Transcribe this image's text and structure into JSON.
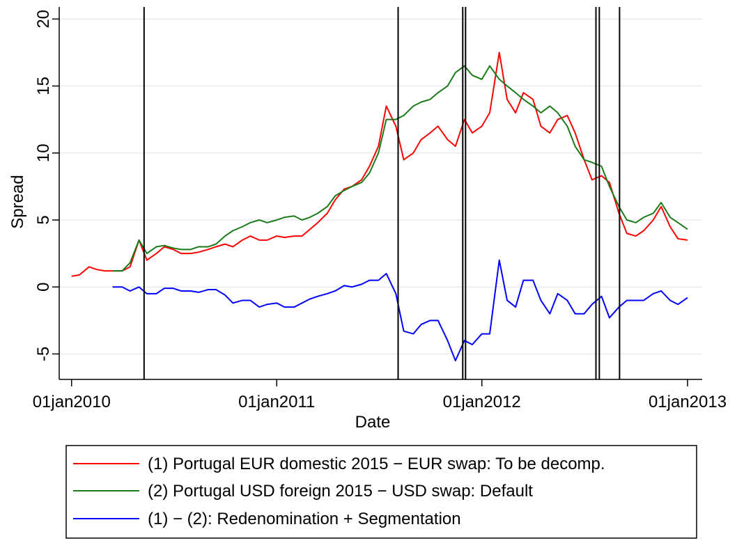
{
  "chart_data": {
    "type": "line",
    "x_label": "Date",
    "y_label": "Spread",
    "x": [
      "2010-01-01",
      "2010-01-15",
      "2010-02-01",
      "2010-02-15",
      "2010-03-01",
      "2010-03-15",
      "2010-04-01",
      "2010-04-15",
      "2010-05-01",
      "2010-05-15",
      "2010-06-01",
      "2010-06-15",
      "2010-07-01",
      "2010-07-15",
      "2010-08-01",
      "2010-08-15",
      "2010-09-01",
      "2010-09-15",
      "2010-10-01",
      "2010-10-15",
      "2010-11-01",
      "2010-11-15",
      "2010-12-01",
      "2010-12-15",
      "2011-01-01",
      "2011-01-15",
      "2011-02-01",
      "2011-02-15",
      "2011-03-01",
      "2011-03-15",
      "2011-04-01",
      "2011-04-15",
      "2011-05-01",
      "2011-05-15",
      "2011-06-01",
      "2011-06-15",
      "2011-07-01",
      "2011-07-15",
      "2011-08-01",
      "2011-08-15",
      "2011-09-01",
      "2011-09-15",
      "2011-10-01",
      "2011-10-15",
      "2011-11-01",
      "2011-11-15",
      "2011-12-01",
      "2011-12-15",
      "2012-01-01",
      "2012-01-15",
      "2012-02-01",
      "2012-02-15",
      "2012-03-01",
      "2012-03-15",
      "2012-04-01",
      "2012-04-15",
      "2012-05-01",
      "2012-05-15",
      "2012-06-01",
      "2012-06-15",
      "2012-07-01",
      "2012-07-15",
      "2012-08-01",
      "2012-08-15",
      "2012-09-01",
      "2012-09-15",
      "2012-10-01",
      "2012-10-15",
      "2012-11-01",
      "2012-11-15",
      "2012-12-01",
      "2012-12-15",
      "2013-01-01"
    ],
    "series": [
      {
        "name": "(1) Portugal EUR domestic 2015 − EUR swap: To be decomp.",
        "color": "#ff0000",
        "values": [
          0.8,
          0.9,
          1.5,
          1.3,
          1.2,
          1.2,
          1.2,
          1.5,
          3.5,
          2.0,
          2.5,
          3.0,
          2.8,
          2.5,
          2.5,
          2.6,
          2.8,
          3.0,
          3.2,
          3.0,
          3.5,
          3.8,
          3.5,
          3.5,
          3.8,
          3.7,
          3.8,
          3.8,
          4.3,
          4.8,
          5.5,
          6.5,
          7.3,
          7.5,
          8.0,
          9.0,
          10.5,
          13.5,
          12.0,
          9.5,
          10.0,
          11.0,
          11.5,
          12.0,
          11.0,
          10.5,
          12.5,
          11.5,
          12.0,
          13.0,
          17.5,
          14.0,
          13.0,
          14.5,
          14.0,
          12.0,
          11.5,
          12.5,
          12.8,
          11.5,
          9.5,
          8.0,
          8.3,
          7.8,
          5.5,
          4.0,
          3.8,
          4.2,
          5.0,
          6.0,
          4.5,
          3.6,
          3.5
        ]
      },
      {
        "name": "(2) Portugal USD foreign 2015 − USD swap: Default",
        "color": "#1a7a1a",
        "values": [
          null,
          null,
          null,
          null,
          null,
          1.2,
          1.2,
          1.8,
          3.5,
          2.5,
          3.0,
          3.1,
          2.9,
          2.8,
          2.8,
          3.0,
          3.0,
          3.2,
          3.8,
          4.2,
          4.5,
          4.8,
          5.0,
          4.8,
          5.0,
          5.2,
          5.3,
          5.0,
          5.2,
          5.5,
          6.0,
          6.8,
          7.2,
          7.5,
          7.8,
          8.5,
          10.0,
          12.5,
          12.5,
          12.8,
          13.5,
          13.8,
          14.0,
          14.5,
          15.0,
          16.0,
          16.5,
          15.8,
          15.5,
          16.5,
          15.5,
          15.0,
          14.5,
          14.0,
          13.5,
          13.0,
          13.5,
          13.0,
          12.0,
          10.5,
          9.5,
          9.3,
          9.0,
          7.5,
          6.0,
          5.0,
          4.8,
          5.2,
          5.5,
          6.3,
          5.2,
          4.8,
          4.3
        ]
      },
      {
        "name": "(1) − (2): Redenomination + Segmentation",
        "color": "#0000ff",
        "values": [
          null,
          null,
          null,
          null,
          null,
          0,
          0,
          -0.3,
          0,
          -0.5,
          -0.5,
          -0.1,
          -0.1,
          -0.3,
          -0.3,
          -0.4,
          -0.2,
          -0.2,
          -0.6,
          -1.2,
          -1.0,
          -1.0,
          -1.5,
          -1.3,
          -1.2,
          -1.5,
          -1.5,
          -1.2,
          -0.9,
          -0.7,
          -0.5,
          -0.3,
          0.1,
          0,
          0.2,
          0.5,
          0.5,
          1.0,
          -0.5,
          -3.3,
          -3.5,
          -2.8,
          -2.5,
          -2.5,
          -4.0,
          -5.5,
          -4.0,
          -4.3,
          -3.5,
          -3.5,
          2.0,
          -1.0,
          -1.5,
          0.5,
          0.5,
          -1.0,
          -2.0,
          -0.5,
          -1.0,
          -2.0,
          -2.0,
          -1.3,
          -0.7,
          -2.3,
          -1.5,
          -1.0,
          -1.0,
          -1.0,
          -0.5,
          -0.3,
          -1.0,
          -1.3,
          -0.8
        ]
      }
    ],
    "vlines": [
      "2010-05-10",
      "2011-08-05",
      "2011-11-28",
      "2011-12-03",
      "2012-07-22",
      "2012-07-28",
      "2012-09-02"
    ],
    "vline_color": "#000000",
    "xlim": [
      "2009-12-10",
      "2013-01-27"
    ],
    "xticks": [
      {
        "value": "2010-01-01",
        "label": "01jan2010"
      },
      {
        "value": "2011-01-01",
        "label": "01jan2011"
      },
      {
        "value": "2012-01-01",
        "label": "01jan2012"
      },
      {
        "value": "2013-01-01",
        "label": "01jan2013"
      }
    ],
    "ylim": [
      -6.9,
      20.9
    ],
    "yticks": [
      -5,
      0,
      5,
      10,
      15,
      20
    ],
    "grid": true,
    "legend": "bottom"
  }
}
